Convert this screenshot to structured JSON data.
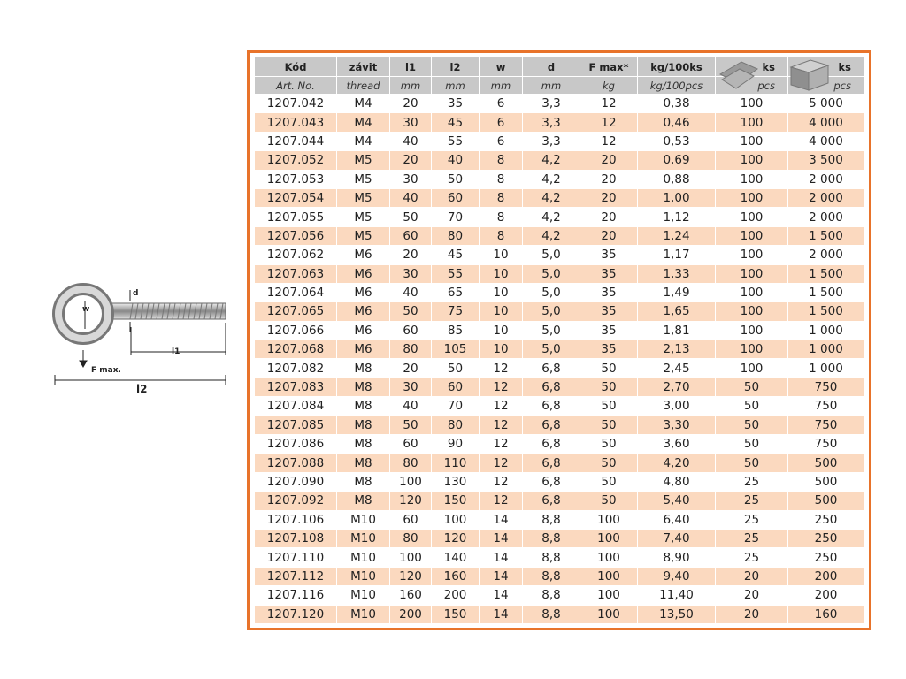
{
  "diagram": {
    "labels": {
      "d": "d",
      "w": "w",
      "l1": "l1",
      "f_max": "F max.",
      "l2": "l2"
    }
  },
  "table": {
    "header": [
      [
        "Kód",
        "závit",
        "l1",
        "l2",
        "w",
        "d",
        "F max*",
        "kg/100ks",
        "ks",
        "ks"
      ],
      [
        "Art. No.",
        "thread",
        "mm",
        "mm",
        "mm",
        "mm",
        "kg",
        "kg/100pcs",
        "pcs",
        "pcs"
      ]
    ],
    "rows": [
      [
        "1207.042",
        "M4",
        "20",
        "35",
        "6",
        "3,3",
        "12",
        "0,38",
        "100",
        "5 000"
      ],
      [
        "1207.043",
        "M4",
        "30",
        "45",
        "6",
        "3,3",
        "12",
        "0,46",
        "100",
        "4 000"
      ],
      [
        "1207.044",
        "M4",
        "40",
        "55",
        "6",
        "3,3",
        "12",
        "0,53",
        "100",
        "4 000"
      ],
      [
        "1207.052",
        "M5",
        "20",
        "40",
        "8",
        "4,2",
        "20",
        "0,69",
        "100",
        "3 500"
      ],
      [
        "1207.053",
        "M5",
        "30",
        "50",
        "8",
        "4,2",
        "20",
        "0,88",
        "100",
        "2 000"
      ],
      [
        "1207.054",
        "M5",
        "40",
        "60",
        "8",
        "4,2",
        "20",
        "1,00",
        "100",
        "2 000"
      ],
      [
        "1207.055",
        "M5",
        "50",
        "70",
        "8",
        "4,2",
        "20",
        "1,12",
        "100",
        "2 000"
      ],
      [
        "1207.056",
        "M5",
        "60",
        "80",
        "8",
        "4,2",
        "20",
        "1,24",
        "100",
        "1 500"
      ],
      [
        "1207.062",
        "M6",
        "20",
        "45",
        "10",
        "5,0",
        "35",
        "1,17",
        "100",
        "2 000"
      ],
      [
        "1207.063",
        "M6",
        "30",
        "55",
        "10",
        "5,0",
        "35",
        "1,33",
        "100",
        "1 500"
      ],
      [
        "1207.064",
        "M6",
        "40",
        "65",
        "10",
        "5,0",
        "35",
        "1,49",
        "100",
        "1 500"
      ],
      [
        "1207.065",
        "M6",
        "50",
        "75",
        "10",
        "5,0",
        "35",
        "1,65",
        "100",
        "1 500"
      ],
      [
        "1207.066",
        "M6",
        "60",
        "85",
        "10",
        "5,0",
        "35",
        "1,81",
        "100",
        "1 000"
      ],
      [
        "1207.068",
        "M6",
        "80",
        "105",
        "10",
        "5,0",
        "35",
        "2,13",
        "100",
        "1 000"
      ],
      [
        "1207.082",
        "M8",
        "20",
        "50",
        "12",
        "6,8",
        "50",
        "2,45",
        "100",
        "1 000"
      ],
      [
        "1207.083",
        "M8",
        "30",
        "60",
        "12",
        "6,8",
        "50",
        "2,70",
        "50",
        "750"
      ],
      [
        "1207.084",
        "M8",
        "40",
        "70",
        "12",
        "6,8",
        "50",
        "3,00",
        "50",
        "750"
      ],
      [
        "1207.085",
        "M8",
        "50",
        "80",
        "12",
        "6,8",
        "50",
        "3,30",
        "50",
        "750"
      ],
      [
        "1207.086",
        "M8",
        "60",
        "90",
        "12",
        "6,8",
        "50",
        "3,60",
        "50",
        "750"
      ],
      [
        "1207.088",
        "M8",
        "80",
        "110",
        "12",
        "6,8",
        "50",
        "4,20",
        "50",
        "500"
      ],
      [
        "1207.090",
        "M8",
        "100",
        "130",
        "12",
        "6,8",
        "50",
        "4,80",
        "25",
        "500"
      ],
      [
        "1207.092",
        "M8",
        "120",
        "150",
        "12",
        "6,8",
        "50",
        "5,40",
        "25",
        "500"
      ],
      [
        "1207.106",
        "M10",
        "60",
        "100",
        "14",
        "8,8",
        "100",
        "6,40",
        "25",
        "250"
      ],
      [
        "1207.108",
        "M10",
        "80",
        "120",
        "14",
        "8,8",
        "100",
        "7,40",
        "25",
        "250"
      ],
      [
        "1207.110",
        "M10",
        "100",
        "140",
        "14",
        "8,8",
        "100",
        "8,90",
        "25",
        "250"
      ],
      [
        "1207.112",
        "M10",
        "120",
        "160",
        "14",
        "8,8",
        "100",
        "9,40",
        "20",
        "200"
      ],
      [
        "1207.116",
        "M10",
        "160",
        "200",
        "14",
        "8,8",
        "100",
        "11,40",
        "20",
        "200"
      ],
      [
        "1207.120",
        "M10",
        "200",
        "150",
        "14",
        "8,8",
        "100",
        "13,50",
        "20",
        "160"
      ]
    ]
  }
}
